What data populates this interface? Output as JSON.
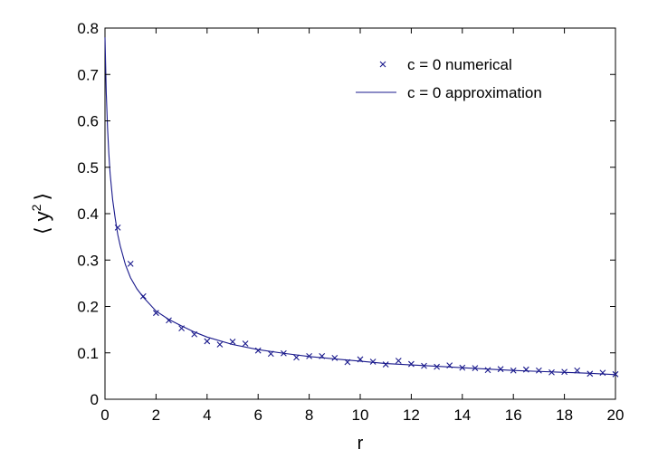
{
  "chart_data": {
    "type": "scatter",
    "xlabel": "r",
    "ylabel": "⟨ y² ⟩",
    "ylabel_base": "⟨ y",
    "ylabel_sup": "2",
    "ylabel_close": "⟩",
    "xlim": [
      0,
      20
    ],
    "ylim": [
      0,
      0.8
    ],
    "xticks": [
      0,
      2,
      4,
      6,
      8,
      10,
      12,
      14,
      16,
      18,
      20
    ],
    "yticks": [
      0,
      0.1,
      0.2,
      0.3,
      0.4,
      0.5,
      0.6,
      0.7,
      0.8
    ],
    "xtick_labels": [
      "0",
      "2",
      "4",
      "6",
      "8",
      "10",
      "12",
      "14",
      "16",
      "18",
      "20"
    ],
    "ytick_labels": [
      "0",
      "0.1",
      "0.2",
      "0.3",
      "0.4",
      "0.5",
      "0.6",
      "0.7",
      "0.8"
    ],
    "grid": false,
    "legend_position": "top-right",
    "color": "#1a1a8c",
    "series": [
      {
        "name": "c = 0 numerical",
        "marker": "x",
        "x": [
          0.5,
          1.0,
          1.5,
          2.0,
          2.5,
          3.0,
          3.5,
          4.0,
          4.5,
          5.0,
          5.5,
          6.0,
          6.5,
          7.0,
          7.5,
          8.0,
          8.5,
          9.0,
          9.5,
          10.0,
          10.5,
          11.0,
          11.5,
          12.0,
          12.5,
          13.0,
          13.5,
          14.0,
          14.5,
          15.0,
          15.5,
          16.0,
          16.5,
          17.0,
          17.5,
          18.0,
          18.5,
          19.0,
          19.5,
          20.0
        ],
        "y": [
          0.37,
          0.292,
          0.222,
          0.186,
          0.17,
          0.153,
          0.14,
          0.125,
          0.118,
          0.124,
          0.12,
          0.105,
          0.098,
          0.099,
          0.09,
          0.093,
          0.093,
          0.089,
          0.08,
          0.086,
          0.081,
          0.075,
          0.083,
          0.076,
          0.072,
          0.07,
          0.073,
          0.068,
          0.067,
          0.063,
          0.065,
          0.062,
          0.064,
          0.062,
          0.058,
          0.059,
          0.062,
          0.055,
          0.057,
          0.054
        ]
      },
      {
        "name": "c = 0 approximation",
        "marker": "line",
        "x": [
          0.0,
          0.05,
          0.1,
          0.15,
          0.2,
          0.3,
          0.4,
          0.5,
          0.6,
          0.8,
          1.0,
          1.25,
          1.5,
          2.0,
          2.5,
          3.0,
          3.5,
          4.0,
          5.0,
          6.0,
          7.0,
          8.0,
          9.0,
          10.0,
          11.0,
          12.0,
          13.0,
          14.0,
          15.0,
          16.0,
          17.0,
          18.0,
          19.0,
          20.0
        ],
        "y": [
          0.78,
          0.66,
          0.585,
          0.53,
          0.487,
          0.43,
          0.39,
          0.355,
          0.33,
          0.29,
          0.262,
          0.238,
          0.22,
          0.19,
          0.172,
          0.158,
          0.145,
          0.134,
          0.118,
          0.107,
          0.099,
          0.092,
          0.087,
          0.082,
          0.077,
          0.074,
          0.071,
          0.068,
          0.065,
          0.062,
          0.06,
          0.058,
          0.056,
          0.053
        ]
      }
    ]
  }
}
